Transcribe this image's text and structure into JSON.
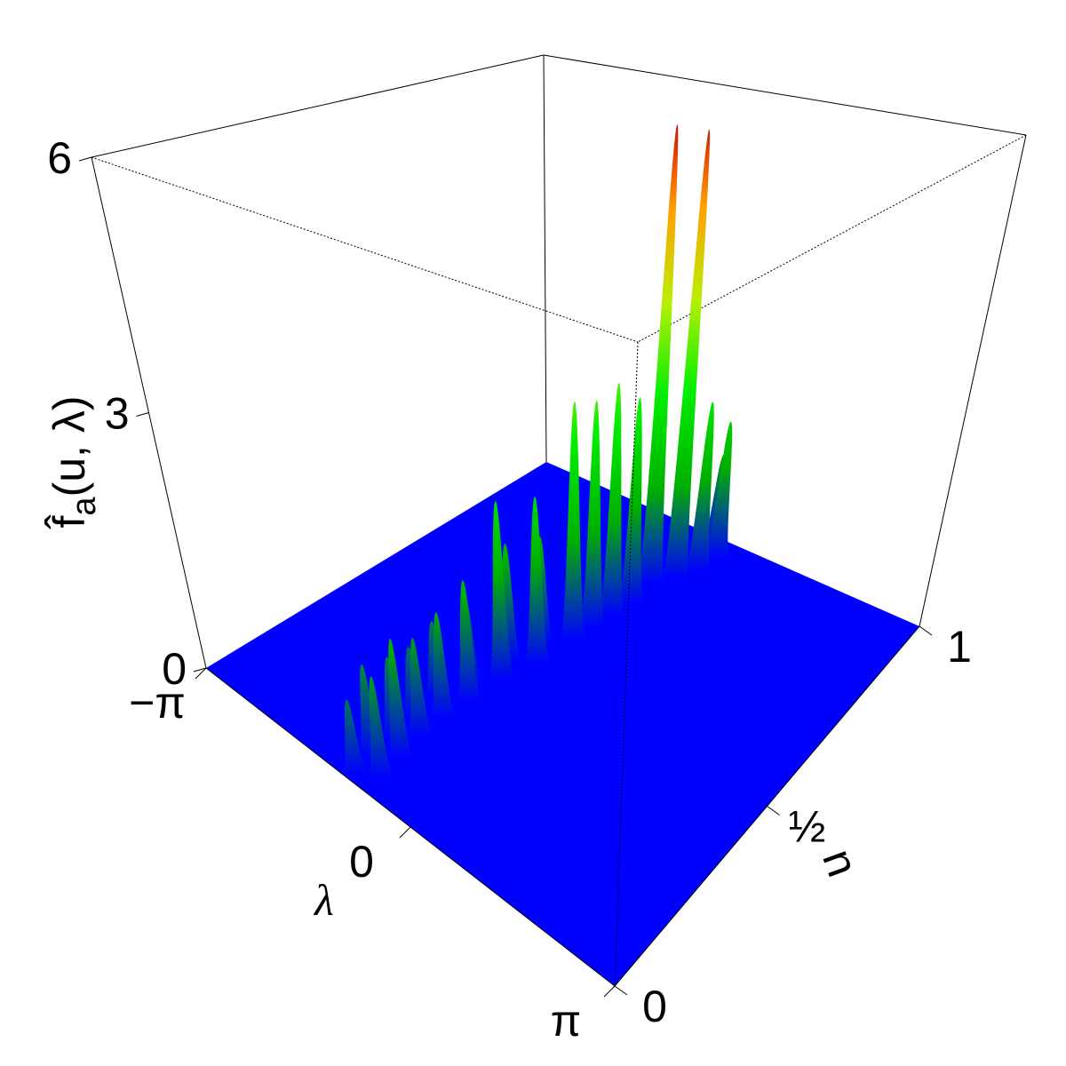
{
  "chart_data": {
    "type": "surface3d",
    "xlabel": "u",
    "ylabel": "λ",
    "zlabel": {
      "main": "f̂",
      "sub": "a",
      "rest": "(u, λ)"
    },
    "xlim": [
      0,
      1
    ],
    "xticks": [
      0,
      {
        "value": 0.5,
        "label": "½"
      },
      1
    ],
    "ylim": [
      -3.14159,
      3.14159
    ],
    "yticks": [
      {
        "value": -3.14159,
        "label": "−π"
      },
      0,
      {
        "value": 3.14159,
        "label": "π"
      }
    ],
    "zlim": [
      0,
      6
    ],
    "zticks": [
      0,
      3,
      6
    ],
    "floor_color": "#0000ff",
    "colorscale": [
      "#0000ff",
      "#00b000",
      "#00ee00",
      "#b8f000",
      "#ffa000",
      "#d00000"
    ],
    "x": [
      0.02,
      0.05,
      0.08,
      0.12,
      0.15,
      0.19,
      0.22,
      0.26,
      0.29,
      0.33,
      0.37,
      0.42,
      0.47,
      0.5,
      0.55,
      0.6,
      0.65,
      0.7,
      0.75,
      0.82,
      0.86,
      0.9,
      0.95,
      0.98
    ],
    "y": [
      -0.95,
      -0.7,
      -1.0,
      -0.75,
      -1.0,
      -0.8,
      -1.05,
      -0.8,
      -1.05,
      -0.75,
      -0.95,
      -0.7,
      -0.85,
      -0.55,
      -0.75,
      -0.5,
      -0.45,
      -0.4,
      -0.35,
      -0.4,
      -0.2,
      -0.05,
      0.0,
      -0.2
    ],
    "z": [
      0.8,
      1.1,
      1.0,
      1.3,
      0.9,
      1.1,
      0.8,
      1.2,
      0.9,
      1.4,
      1.0,
      2.1,
      1.4,
      2.0,
      1.3,
      2.9,
      2.8,
      2.9,
      2.6,
      5.9,
      5.8,
      2.2,
      1.8,
      1.2
    ]
  }
}
